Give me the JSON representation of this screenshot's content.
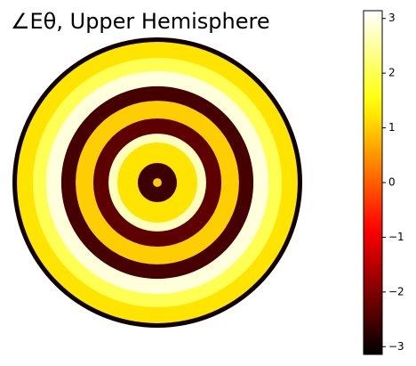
{
  "chart_data": {
    "type": "polar-heatmap",
    "title": "∠Eθ, Upper Hemisphere",
    "r_edges": [
      0,
      0.03,
      0.135,
      0.276,
      0.337,
      0.442,
      0.564,
      0.663,
      0.767,
      0.859,
      0.969,
      1
    ],
    "values": [
      1.0,
      -2.6,
      1.2,
      2.7,
      -2.3,
      1.0,
      -2.5,
      2.9,
      2.0,
      1.2,
      -3.0
    ],
    "colormap": "hot",
    "ylim": [
      -3.1416,
      3.1416
    ],
    "yticks": [
      {
        "value": -3,
        "label": "−3"
      },
      {
        "value": -2,
        "label": "−2"
      },
      {
        "value": -1,
        "label": "−1"
      },
      0,
      1,
      2,
      3
    ]
  }
}
